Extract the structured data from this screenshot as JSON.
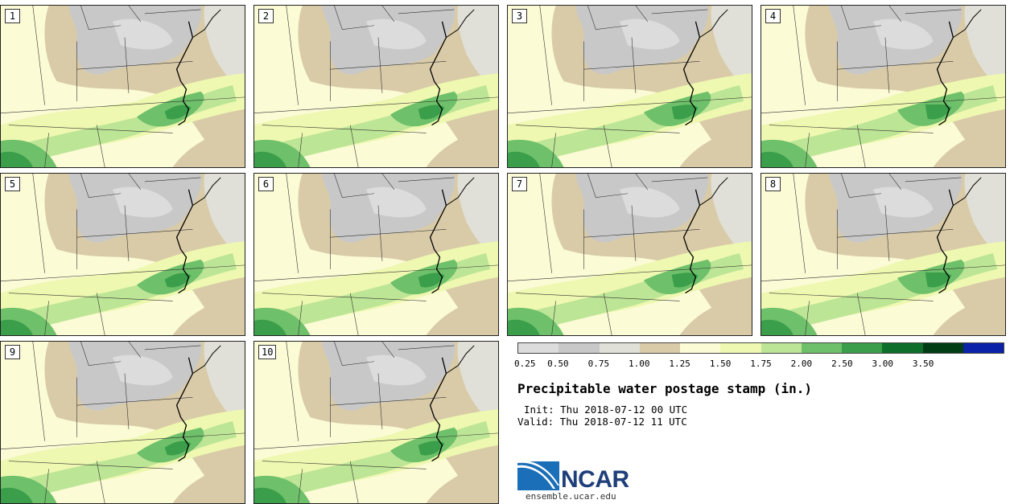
{
  "panels": [
    {
      "label": "1"
    },
    {
      "label": "2"
    },
    {
      "label": "3"
    },
    {
      "label": "4"
    },
    {
      "label": "5"
    },
    {
      "label": "6"
    },
    {
      "label": "7"
    },
    {
      "label": "8"
    },
    {
      "label": "9"
    },
    {
      "label": "10"
    }
  ],
  "colorbar": {
    "ticks": [
      "0.25",
      "0.50",
      "0.75",
      "1.00",
      "1.25",
      "1.50",
      "1.75",
      "2.00",
      "2.50",
      "3.00",
      "3.50"
    ],
    "colors": [
      "#dcdcdc",
      "#c8c8c8",
      "#e0e0d8",
      "#d9cba8",
      "#fbfbd6",
      "#eef8b0",
      "#bde596",
      "#6ec06a",
      "#3a9e4a",
      "#0f6e2a",
      "#003d14",
      "#0a22a8"
    ]
  },
  "title": "Precipitable water postage stamp (in.)",
  "init": "Init: Thu 2018-07-12 00 UTC",
  "valid": "Valid: Thu 2018-07-12 11 UTC",
  "logo": {
    "text": "NCAR"
  },
  "url": "ensemble.ucar.edu"
}
